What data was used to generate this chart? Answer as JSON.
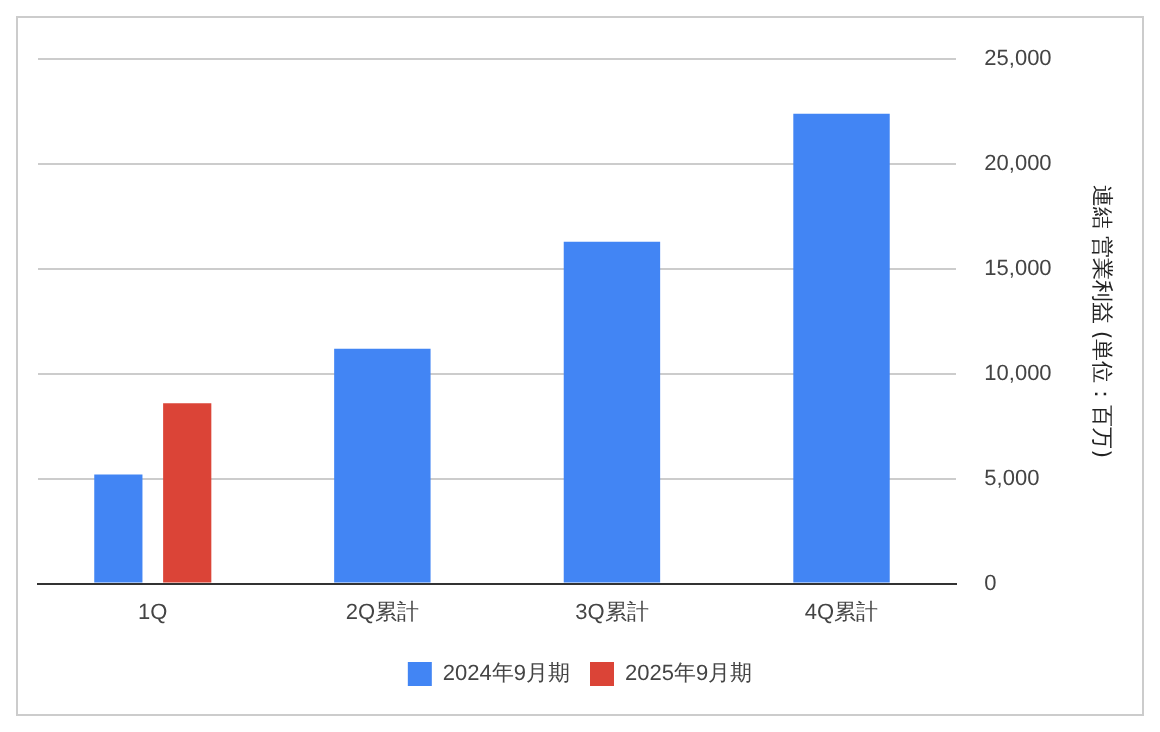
{
  "chart_data": {
    "type": "bar",
    "ylabel": "連結 営業利益 (単位：百万)",
    "categories": [
      "1Q",
      "2Q累計",
      "3Q累計",
      "4Q累計"
    ],
    "series": [
      {
        "name": "2024年9月期",
        "color": "#4285f4",
        "values": [
          5200,
          11200,
          16300,
          22400
        ]
      },
      {
        "name": "2025年9月期",
        "color": "#db4437",
        "values": [
          8600,
          null,
          null,
          null
        ]
      }
    ],
    "ylim": [
      0,
      25000
    ],
    "yticks": [
      {
        "value": 0,
        "label": "0"
      },
      {
        "value": 5000,
        "label": "5,000"
      },
      {
        "value": 10000,
        "label": "10,000"
      },
      {
        "value": 15000,
        "label": "15,000"
      },
      {
        "value": 20000,
        "label": "20,000"
      },
      {
        "value": 25000,
        "label": "25,000"
      }
    ],
    "grid": "y",
    "legend": "bottom"
  }
}
